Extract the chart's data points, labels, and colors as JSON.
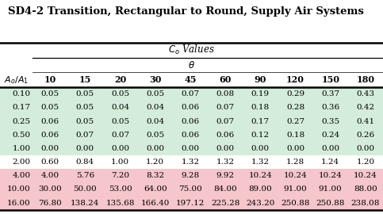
{
  "title": "SD4-2 Transition, Rectangular to Round, Supply Air Systems",
  "col_labels": [
    "10",
    "15",
    "20",
    "30",
    "45",
    "60",
    "90",
    "120",
    "150",
    "180"
  ],
  "row_labels": [
    "0.10",
    "0.17",
    "0.25",
    "0.50",
    "1.00",
    "2.00",
    "4.00",
    "10.00",
    "16.00"
  ],
  "table_data": [
    [
      "0.05",
      "0.05",
      "0.05",
      "0.05",
      "0.07",
      "0.08",
      "0.19",
      "0.29",
      "0.37",
      "0.43"
    ],
    [
      "0.05",
      "0.05",
      "0.04",
      "0.04",
      "0.06",
      "0.07",
      "0.18",
      "0.28",
      "0.36",
      "0.42"
    ],
    [
      "0.06",
      "0.05",
      "0.05",
      "0.04",
      "0.06",
      "0.07",
      "0.17",
      "0.27",
      "0.35",
      "0.41"
    ],
    [
      "0.06",
      "0.07",
      "0.07",
      "0.05",
      "0.06",
      "0.06",
      "0.12",
      "0.18",
      "0.24",
      "0.26"
    ],
    [
      "0.00",
      "0.00",
      "0.00",
      "0.00",
      "0.00",
      "0.00",
      "0.00",
      "0.00",
      "0.00",
      "0.00"
    ],
    [
      "0.60",
      "0.84",
      "1.00",
      "1.20",
      "1.32",
      "1.32",
      "1.32",
      "1.28",
      "1.24",
      "1.20"
    ],
    [
      "4.00",
      "5.76",
      "7.20",
      "8.32",
      "9.28",
      "9.92",
      "10.24",
      "10.24",
      "10.24",
      "10.24"
    ],
    [
      "30.00",
      "50.00",
      "53.00",
      "64.00",
      "75.00",
      "84.00",
      "89.00",
      "91.00",
      "91.00",
      "88.00"
    ],
    [
      "76.80",
      "138.24",
      "135.68",
      "166.40",
      "197.12",
      "225.28",
      "243.20",
      "250.88",
      "250.88",
      "238.08"
    ]
  ],
  "row_colors": [
    "#d4edda",
    "#d4edda",
    "#d4edda",
    "#d4edda",
    "#d4edda",
    "#ffffff",
    "#f5c6cb",
    "#f5c6cb",
    "#f5c6cb"
  ],
  "bg_color": "#ffffff",
  "title_fontsize": 9.5,
  "header_fontsize": 8.5,
  "cell_fontsize": 7.5
}
